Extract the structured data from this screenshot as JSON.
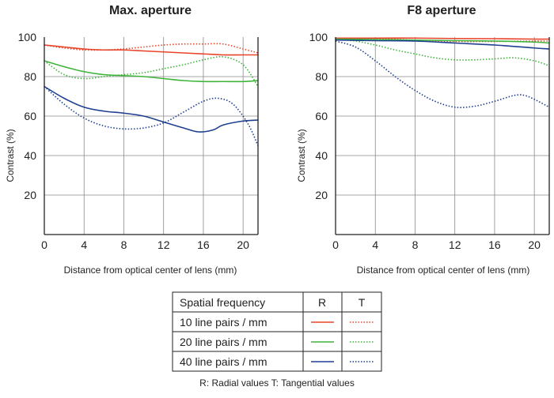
{
  "colors": {
    "lp10": "#e8442a",
    "lp20": "#3db43a",
    "lp40": "#1e3f8f",
    "grid": "#8a8a8a",
    "axis": "#222222"
  },
  "chart_data": [
    {
      "type": "line",
      "title": "Max. aperture",
      "xlabel": "Distance from optical center of lens (mm)",
      "ylabel": "Contrast (%)",
      "xlim": [
        0,
        21.5
      ],
      "ylim": [
        0,
        100
      ],
      "xticks": [
        "0",
        "4",
        "8",
        "12",
        "16",
        "20"
      ],
      "yticks": [
        "20",
        "40",
        "60",
        "80",
        "100"
      ],
      "series": [
        {
          "name": "10 line pairs / mm R",
          "freq": "lp10",
          "kind": "R",
          "points": [
            [
              0,
              96
            ],
            [
              2,
              95
            ],
            [
              4,
              94
            ],
            [
              6,
              93.5
            ],
            [
              8,
              93.5
            ],
            [
              10,
              93
            ],
            [
              12,
              92.5
            ],
            [
              14,
              92
            ],
            [
              16,
              91.5
            ],
            [
              18,
              91
            ],
            [
              20,
              91
            ],
            [
              21.5,
              91
            ]
          ]
        },
        {
          "name": "10 line pairs / mm T",
          "freq": "lp10",
          "kind": "T",
          "points": [
            [
              0,
              96
            ],
            [
              2,
              94.5
            ],
            [
              4,
              93.5
            ],
            [
              6,
              93.5
            ],
            [
              8,
              94
            ],
            [
              10,
              95
            ],
            [
              12,
              96
            ],
            [
              14,
              96.5
            ],
            [
              16,
              96.5
            ],
            [
              18,
              96.5
            ],
            [
              20,
              94
            ],
            [
              21.5,
              92
            ]
          ]
        },
        {
          "name": "20 line pairs / mm R",
          "freq": "lp20",
          "kind": "R",
          "points": [
            [
              0,
              88
            ],
            [
              2,
              85
            ],
            [
              4,
              82.5
            ],
            [
              6,
              81
            ],
            [
              8,
              80.5
            ],
            [
              10,
              80
            ],
            [
              12,
              79
            ],
            [
              14,
              78
            ],
            [
              16,
              77.5
            ],
            [
              18,
              77.5
            ],
            [
              20,
              77.5
            ],
            [
              21.5,
              78
            ]
          ]
        },
        {
          "name": "20 line pairs / mm T",
          "freq": "lp20",
          "kind": "T",
          "points": [
            [
              0,
              88
            ],
            [
              2,
              81
            ],
            [
              4,
              79
            ],
            [
              6,
              80
            ],
            [
              8,
              81
            ],
            [
              10,
              82
            ],
            [
              12,
              84
            ],
            [
              14,
              86
            ],
            [
              16,
              88.5
            ],
            [
              18,
              90
            ],
            [
              20,
              86
            ],
            [
              21.5,
              75
            ]
          ]
        },
        {
          "name": "40 line pairs / mm R",
          "freq": "lp40",
          "kind": "R",
          "points": [
            [
              0,
              75
            ],
            [
              2,
              69
            ],
            [
              4,
              64.5
            ],
            [
              6,
              62.5
            ],
            [
              8,
              61.5
            ],
            [
              10,
              60
            ],
            [
              12,
              57
            ],
            [
              14,
              54
            ],
            [
              15.5,
              52
            ],
            [
              17,
              53
            ],
            [
              18,
              55.5
            ],
            [
              20,
              57.5
            ],
            [
              21.5,
              58
            ]
          ]
        },
        {
          "name": "40 line pairs / mm T",
          "freq": "lp40",
          "kind": "T",
          "points": [
            [
              0,
              75
            ],
            [
              2,
              66
            ],
            [
              4,
              59
            ],
            [
              6,
              55
            ],
            [
              8,
              53.5
            ],
            [
              10,
              54
            ],
            [
              12,
              56.5
            ],
            [
              14,
              62
            ],
            [
              16,
              67.5
            ],
            [
              17.5,
              69
            ],
            [
              19,
              66
            ],
            [
              20.5,
              56
            ],
            [
              21.5,
              45
            ]
          ]
        }
      ]
    },
    {
      "type": "line",
      "title": "F8 aperture",
      "xlabel": "Distance from optical center of lens (mm)",
      "ylabel": "Contrast (%)",
      "xlim": [
        0,
        21.5
      ],
      "ylim": [
        0,
        100
      ],
      "xticks": [
        "0",
        "4",
        "8",
        "12",
        "16",
        "20"
      ],
      "yticks": [
        "20",
        "40",
        "60",
        "80",
        "100"
      ],
      "series": [
        {
          "name": "10 line pairs / mm R",
          "freq": "lp10",
          "kind": "R",
          "points": [
            [
              0,
              99.5
            ],
            [
              4,
              99.5
            ],
            [
              8,
              99.5
            ],
            [
              12,
              99.3
            ],
            [
              16,
              99.2
            ],
            [
              20,
              99
            ],
            [
              21.5,
              99
            ]
          ]
        },
        {
          "name": "10 line pairs / mm T",
          "freq": "lp10",
          "kind": "T",
          "points": [
            [
              0,
              99.5
            ],
            [
              4,
              99.2
            ],
            [
              8,
              98.5
            ],
            [
              12,
              97.8
            ],
            [
              16,
              97.8
            ],
            [
              20,
              98
            ],
            [
              21.5,
              98
            ]
          ]
        },
        {
          "name": "20 line pairs / mm R",
          "freq": "lp20",
          "kind": "R",
          "points": [
            [
              0,
              99
            ],
            [
              4,
              98.8
            ],
            [
              8,
              98.5
            ],
            [
              12,
              98.2
            ],
            [
              16,
              98
            ],
            [
              20,
              97.5
            ],
            [
              21.5,
              97
            ]
          ]
        },
        {
          "name": "20 line pairs / mm T",
          "freq": "lp20",
          "kind": "T",
          "points": [
            [
              0,
              99
            ],
            [
              2,
              98
            ],
            [
              4,
              96
            ],
            [
              6,
              93.5
            ],
            [
              8,
              91.5
            ],
            [
              10,
              89.5
            ],
            [
              12,
              88.5
            ],
            [
              14,
              88.5
            ],
            [
              16,
              89
            ],
            [
              18,
              89.5
            ],
            [
              20,
              88
            ],
            [
              21.5,
              85.5
            ]
          ]
        },
        {
          "name": "40 line pairs / mm R",
          "freq": "lp40",
          "kind": "R",
          "points": [
            [
              0,
              98.5
            ],
            [
              4,
              98.2
            ],
            [
              8,
              98
            ],
            [
              12,
              97
            ],
            [
              16,
              96
            ],
            [
              20,
              94.5
            ],
            [
              21.5,
              94
            ]
          ]
        },
        {
          "name": "40 line pairs / mm T",
          "freq": "lp40",
          "kind": "T",
          "points": [
            [
              0,
              98
            ],
            [
              2,
              95
            ],
            [
              4,
              88
            ],
            [
              6,
              80
            ],
            [
              8,
              73
            ],
            [
              10,
              67.5
            ],
            [
              12,
              64.5
            ],
            [
              14,
              65
            ],
            [
              16,
              67.5
            ],
            [
              18,
              70.5
            ],
            [
              19,
              70.5
            ],
            [
              20,
              68.5
            ],
            [
              21.5,
              64.5
            ]
          ]
        }
      ]
    }
  ],
  "legend": {
    "header": "Spatial frequency",
    "col_r": "R",
    "col_t": "T",
    "rows": [
      {
        "label": "10 line pairs / mm",
        "freq": "lp10"
      },
      {
        "label": "20 line pairs / mm",
        "freq": "lp20"
      },
      {
        "label": "40 line pairs / mm",
        "freq": "lp40"
      }
    ]
  },
  "footnote": "R: Radial values  T: Tangential values"
}
